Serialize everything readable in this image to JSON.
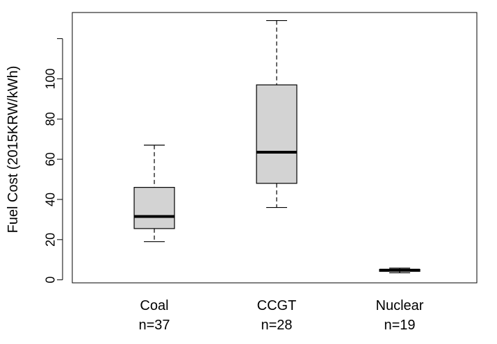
{
  "chart_data": {
    "type": "boxplot",
    "title": "",
    "xlabel": "",
    "ylabel": "Fuel Cost (2015KRW/kWh)",
    "ylim": [
      -1.5,
      133
    ],
    "yticks": [
      0,
      20,
      40,
      60,
      80,
      100,
      120
    ],
    "ytick_labels": [
      "0",
      "20",
      "40",
      "60",
      "80",
      "100",
      ""
    ],
    "grid": false,
    "categories": [
      "Coal",
      "CCGT",
      "Nuclear"
    ],
    "counts": [
      "n=37",
      "n=28",
      "n=19"
    ],
    "box_color": "#d3d3d3",
    "boxes": [
      {
        "name": "Coal",
        "whisker_low": 19,
        "q1": 25.5,
        "median": 31.5,
        "q3": 46,
        "whisker_high": 67
      },
      {
        "name": "CCGT",
        "whisker_low": 36,
        "q1": 48,
        "median": 63.5,
        "q3": 97,
        "whisker_high": 129
      },
      {
        "name": "Nuclear",
        "whisker_low": 3.5,
        "q1": 4.2,
        "median": 4.8,
        "q3": 5.2,
        "whisker_high": 5.8
      }
    ]
  }
}
